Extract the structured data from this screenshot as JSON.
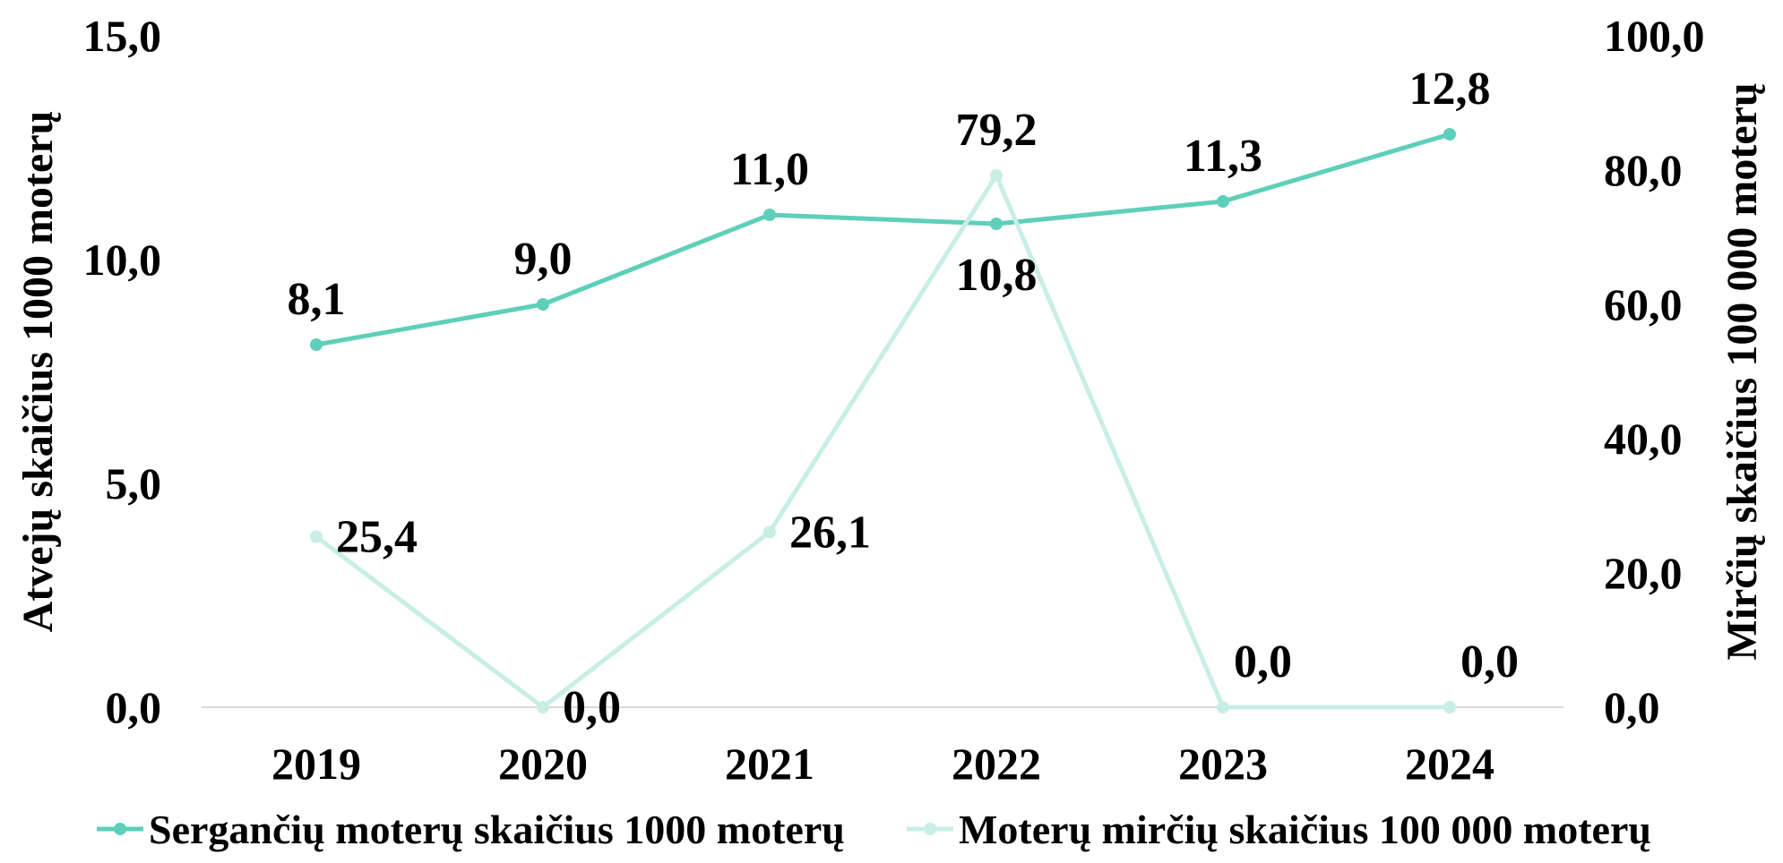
{
  "chart_data": {
    "type": "line",
    "title": "",
    "categories": [
      "2019",
      "2020",
      "2021",
      "2022",
      "2023",
      "2024"
    ],
    "y_left": {
      "label": "Atvejų skaičius 1000 moterų",
      "range": [
        0,
        15
      ],
      "ticks": [
        "0,0",
        "5,0",
        "10,0",
        "15,0"
      ]
    },
    "y_right": {
      "label": "Mirčių skaičius 100 000 moterų",
      "range": [
        0,
        100
      ],
      "ticks": [
        "0,0",
        "20,0",
        "40,0",
        "60,0",
        "80,0",
        "100,0"
      ]
    },
    "grid": false,
    "legend_position": "bottom",
    "series": [
      {
        "name": "Sergančių moterų skaičius 1000 moterų",
        "axis": "left",
        "color": "#5ecfb8",
        "values": [
          8.1,
          9.0,
          11.0,
          10.8,
          11.3,
          12.8
        ],
        "labels": [
          "8,1",
          "9,0",
          "11,0",
          "10,8",
          "11,3",
          "12,8"
        ]
      },
      {
        "name": "Moterų mirčių skaičius 100 000 moterų",
        "axis": "right",
        "color": "#c8eee5",
        "values": [
          25.4,
          0.0,
          26.1,
          79.2,
          0.0,
          0.0
        ],
        "labels": [
          "25,4",
          "0,0",
          "26,1",
          "79,2",
          "0,0",
          "0,0"
        ]
      }
    ]
  }
}
